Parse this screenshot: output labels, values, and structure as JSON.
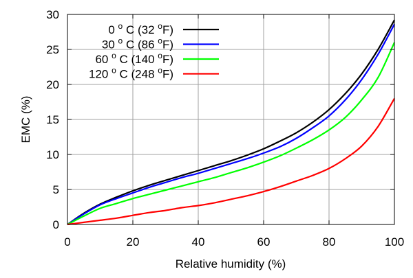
{
  "chart_data": {
    "type": "line",
    "xlabel": "Relative humidity (%)",
    "ylabel": "EMC (%)",
    "xlim": [
      0,
      100
    ],
    "ylim": [
      0,
      30
    ],
    "xticks": [
      0,
      20,
      40,
      60,
      80,
      100
    ],
    "yticks": [
      0,
      5,
      10,
      15,
      20,
      25,
      30
    ],
    "grid": true,
    "legend_position": "top-left",
    "x": [
      0,
      5,
      10,
      15,
      20,
      25,
      30,
      35,
      40,
      45,
      50,
      55,
      60,
      65,
      70,
      75,
      80,
      85,
      90,
      95,
      100
    ],
    "series": [
      {
        "label_parts": {
          "temp": "0",
          "unit1": "C (32",
          "unit2": "F)"
        },
        "color": "#000000",
        "values": [
          0,
          1.6,
          2.9,
          3.9,
          4.8,
          5.6,
          6.3,
          7.0,
          7.7,
          8.4,
          9.1,
          9.9,
          10.8,
          11.9,
          13.1,
          14.6,
          16.4,
          18.7,
          21.5,
          25.0,
          29.2
        ]
      },
      {
        "label_parts": {
          "temp": "30",
          "unit1": "C (86",
          "unit2": "F)"
        },
        "color": "#0000ff",
        "values": [
          0,
          1.5,
          2.8,
          3.7,
          4.5,
          5.3,
          6.0,
          6.7,
          7.3,
          8.0,
          8.7,
          9.4,
          10.2,
          11.1,
          12.3,
          13.8,
          15.5,
          17.8,
          20.7,
          24.3,
          28.6
        ]
      },
      {
        "label_parts": {
          "temp": "60",
          "unit1": "C (140",
          "unit2": "F)"
        },
        "color": "#00ff00",
        "values": [
          0,
          1.2,
          2.3,
          3.0,
          3.7,
          4.3,
          4.9,
          5.5,
          6.1,
          6.7,
          7.4,
          8.1,
          8.9,
          9.8,
          10.9,
          12.1,
          13.5,
          15.3,
          17.8,
          21.0,
          26.0
        ]
      },
      {
        "label_parts": {
          "temp": "120",
          "unit1": "C (248",
          "unit2": "F)"
        },
        "color": "#ff0000",
        "values": [
          0,
          0.3,
          0.6,
          0.9,
          1.3,
          1.7,
          2.0,
          2.4,
          2.7,
          3.1,
          3.6,
          4.1,
          4.7,
          5.4,
          6.2,
          7.0,
          8.0,
          9.4,
          11.2,
          14.0,
          18.0
        ]
      }
    ],
    "degree_symbol": "o"
  }
}
